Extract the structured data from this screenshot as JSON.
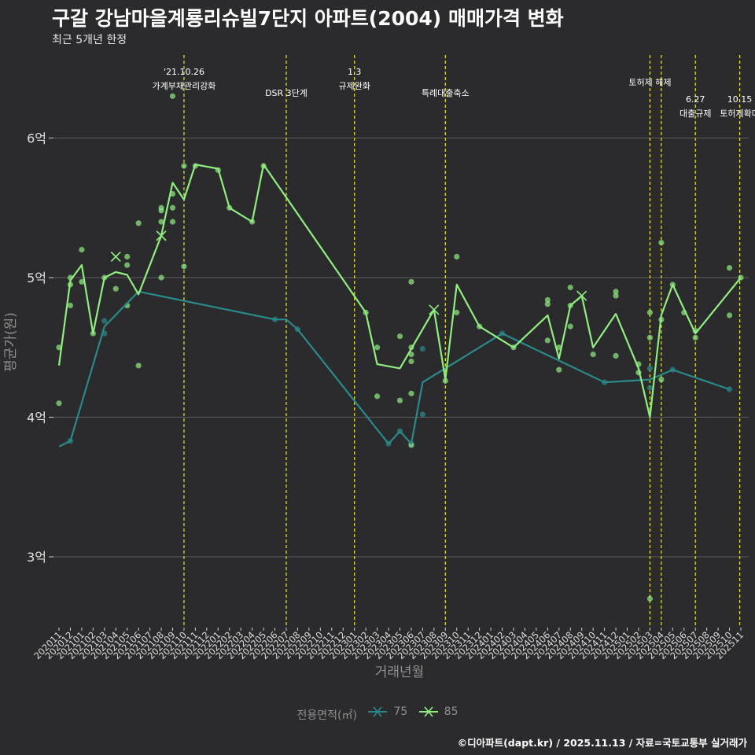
{
  "header": {
    "title": "구갈 강남마을계룡리슈빌7단지 아파트(2004) 매매가격 변화",
    "subtitle": "최근 5개년 한정"
  },
  "caption": "©디아파트(dapt.kr) / 2025.11.13 / 자료=국토교통부 실거래가",
  "legend": {
    "title": "전용면적(㎡)",
    "items": [
      {
        "label": "75",
        "color": "#2a8a8a"
      },
      {
        "label": "85",
        "color": "#90ee80"
      }
    ]
  },
  "colors": {
    "background": "#2b2b2d",
    "grid": "#5c5c5e",
    "event_line": "#e6e62e",
    "series_75": "#2a8a8a",
    "series_85": "#90ee80"
  },
  "chart_data": {
    "type": "line",
    "title": "구갈 강남마을계룡리슈빌7단지 아파트(2004) 매매가격 변화",
    "xlabel": "거래년월",
    "ylabel": "평균가(원)",
    "ylim": [
      2.5,
      6.5
    ],
    "y_ticks": [
      {
        "value": 3,
        "label": "3억"
      },
      {
        "value": 4,
        "label": "4억"
      },
      {
        "value": 5,
        "label": "5억"
      },
      {
        "value": 6,
        "label": "6억"
      }
    ],
    "categories": [
      "202011",
      "202012",
      "202101",
      "202102",
      "202103",
      "202104",
      "202105",
      "202106",
      "202107",
      "202108",
      "202109",
      "202110",
      "202111",
      "202112",
      "202201",
      "202202",
      "202203",
      "202204",
      "202205",
      "202206",
      "202207",
      "202208",
      "202209",
      "202210",
      "202211",
      "202212",
      "202301",
      "202302",
      "202303",
      "202304",
      "202305",
      "202306",
      "202307",
      "202308",
      "202309",
      "202310",
      "202311",
      "202312",
      "202401",
      "202402",
      "202403",
      "202404",
      "202405",
      "202406",
      "202407",
      "202408",
      "202409",
      "202410",
      "202411",
      "202412",
      "202501",
      "202502",
      "202503",
      "202504",
      "202505",
      "202506",
      "202507",
      "202508",
      "202509",
      "202510",
      "202511"
    ],
    "series": [
      {
        "name": "75",
        "color": "#2a8a8a",
        "line": [
          {
            "x": 0,
            "y": 3.79
          },
          {
            "x": 1,
            "y": 3.83
          },
          {
            "x": 4,
            "y": 4.65
          },
          {
            "x": 7,
            "y": 4.9
          },
          {
            "x": 19,
            "y": 4.7
          },
          {
            "x": 20,
            "y": 4.7
          },
          {
            "x": 21,
            "y": 4.63
          },
          {
            "x": 29,
            "y": 3.81
          },
          {
            "x": 30,
            "y": 3.9
          },
          {
            "x": 31,
            "y": 3.81
          },
          {
            "x": 32,
            "y": 4.25
          },
          {
            "x": 39,
            "y": 4.6
          },
          {
            "x": 48,
            "y": 4.25
          },
          {
            "x": 52,
            "y": 4.27
          },
          {
            "x": 54,
            "y": 4.34
          },
          {
            "x": 59,
            "y": 4.2
          }
        ],
        "points": [
          {
            "x": 1,
            "y": 3.83
          },
          {
            "x": 4,
            "y": 4.6
          },
          {
            "x": 4,
            "y": 4.69
          },
          {
            "x": 19,
            "y": 4.7
          },
          {
            "x": 21,
            "y": 4.63
          },
          {
            "x": 29,
            "y": 3.81
          },
          {
            "x": 30,
            "y": 3.9
          },
          {
            "x": 31,
            "y": 3.81
          },
          {
            "x": 32,
            "y": 4.02
          },
          {
            "x": 32,
            "y": 4.49
          },
          {
            "x": 39,
            "y": 4.6
          },
          {
            "x": 48,
            "y": 4.25
          },
          {
            "x": 52,
            "y": 4.21
          },
          {
            "x": 52,
            "y": 4.35
          },
          {
            "x": 54,
            "y": 4.34
          },
          {
            "x": 59,
            "y": 4.2
          }
        ]
      },
      {
        "name": "85",
        "color": "#90ee80",
        "line": [
          {
            "x": 0,
            "y": 4.37
          },
          {
            "x": 1,
            "y": 4.98
          },
          {
            "x": 2,
            "y": 5.09
          },
          {
            "x": 3,
            "y": 4.6
          },
          {
            "x": 4,
            "y": 5.0
          },
          {
            "x": 5,
            "y": 5.04
          },
          {
            "x": 6,
            "y": 5.02
          },
          {
            "x": 7,
            "y": 4.88
          },
          {
            "x": 9,
            "y": 5.3
          },
          {
            "x": 10,
            "y": 5.68
          },
          {
            "x": 11,
            "y": 5.56
          },
          {
            "x": 12,
            "y": 5.81
          },
          {
            "x": 14,
            "y": 5.78
          },
          {
            "x": 15,
            "y": 5.5
          },
          {
            "x": 17,
            "y": 5.4
          },
          {
            "x": 18,
            "y": 5.81
          },
          {
            "x": 27,
            "y": 4.75
          },
          {
            "x": 28,
            "y": 4.38
          },
          {
            "x": 30,
            "y": 4.35
          },
          {
            "x": 33,
            "y": 4.77
          },
          {
            "x": 34,
            "y": 4.27
          },
          {
            "x": 35,
            "y": 4.95
          },
          {
            "x": 37,
            "y": 4.65
          },
          {
            "x": 40,
            "y": 4.5
          },
          {
            "x": 43,
            "y": 4.73
          },
          {
            "x": 44,
            "y": 4.42
          },
          {
            "x": 45,
            "y": 4.8
          },
          {
            "x": 46,
            "y": 4.87
          },
          {
            "x": 47,
            "y": 4.5
          },
          {
            "x": 49,
            "y": 4.74
          },
          {
            "x": 51,
            "y": 4.35
          },
          {
            "x": 52,
            "y": 4.0
          },
          {
            "x": 53,
            "y": 4.73
          },
          {
            "x": 54,
            "y": 4.95
          },
          {
            "x": 56,
            "y": 4.6
          },
          {
            "x": 59,
            "y": 4.9
          },
          {
            "x": 60,
            "y": 5.0
          }
        ],
        "points": [
          {
            "x": 0,
            "y": 4.5
          },
          {
            "x": 0,
            "y": 4.1
          },
          {
            "x": 1,
            "y": 5.0
          },
          {
            "x": 1,
            "y": 4.8
          },
          {
            "x": 1,
            "y": 4.95
          },
          {
            "x": 2,
            "y": 5.2
          },
          {
            "x": 2,
            "y": 4.97
          },
          {
            "x": 3,
            "y": 4.6
          },
          {
            "x": 4,
            "y": 5.0
          },
          {
            "x": 5,
            "y": 4.92
          },
          {
            "x": 6,
            "y": 5.15
          },
          {
            "x": 6,
            "y": 5.09
          },
          {
            "x": 6,
            "y": 4.8
          },
          {
            "x": 7,
            "y": 5.39
          },
          {
            "x": 7,
            "y": 4.37
          },
          {
            "x": 9,
            "y": 5.5
          },
          {
            "x": 9,
            "y": 5.48
          },
          {
            "x": 9,
            "y": 5.4
          },
          {
            "x": 9,
            "y": 5.0
          },
          {
            "x": 10,
            "y": 6.3
          },
          {
            "x": 10,
            "y": 5.6
          },
          {
            "x": 10,
            "y": 5.5
          },
          {
            "x": 10,
            "y": 5.4
          },
          {
            "x": 11,
            "y": 5.8
          },
          {
            "x": 11,
            "y": 5.08
          },
          {
            "x": 12,
            "y": 5.8
          },
          {
            "x": 14,
            "y": 5.77
          },
          {
            "x": 15,
            "y": 5.5
          },
          {
            "x": 17,
            "y": 5.4
          },
          {
            "x": 18,
            "y": 5.8
          },
          {
            "x": 27,
            "y": 4.75
          },
          {
            "x": 28,
            "y": 4.5
          },
          {
            "x": 28,
            "y": 4.15
          },
          {
            "x": 30,
            "y": 4.58
          },
          {
            "x": 30,
            "y": 4.12
          },
          {
            "x": 31,
            "y": 4.97
          },
          {
            "x": 31,
            "y": 4.5
          },
          {
            "x": 31,
            "y": 4.45
          },
          {
            "x": 31,
            "y": 4.4
          },
          {
            "x": 31,
            "y": 4.17
          },
          {
            "x": 31,
            "y": 3.8
          },
          {
            "x": 34,
            "y": 4.26
          },
          {
            "x": 35,
            "y": 5.15
          },
          {
            "x": 35,
            "y": 4.75
          },
          {
            "x": 37,
            "y": 4.65
          },
          {
            "x": 40,
            "y": 4.5
          },
          {
            "x": 43,
            "y": 4.84
          },
          {
            "x": 43,
            "y": 4.81
          },
          {
            "x": 43,
            "y": 4.55
          },
          {
            "x": 44,
            "y": 4.5
          },
          {
            "x": 44,
            "y": 4.34
          },
          {
            "x": 45,
            "y": 4.93
          },
          {
            "x": 45,
            "y": 4.8
          },
          {
            "x": 45,
            "y": 4.65
          },
          {
            "x": 47,
            "y": 4.45
          },
          {
            "x": 49,
            "y": 4.9
          },
          {
            "x": 49,
            "y": 4.87
          },
          {
            "x": 49,
            "y": 4.44
          },
          {
            "x": 51,
            "y": 4.38
          },
          {
            "x": 51,
            "y": 4.32
          },
          {
            "x": 52,
            "y": 4.75
          },
          {
            "x": 52,
            "y": 4.57
          },
          {
            "x": 52,
            "y": 2.7
          },
          {
            "x": 53,
            "y": 5.25
          },
          {
            "x": 53,
            "y": 4.7
          },
          {
            "x": 53,
            "y": 4.27
          },
          {
            "x": 54,
            "y": 4.95
          },
          {
            "x": 55,
            "y": 4.75
          },
          {
            "x": 56,
            "y": 4.62
          },
          {
            "x": 56,
            "y": 4.57
          },
          {
            "x": 59,
            "y": 5.07
          },
          {
            "x": 59,
            "y": 4.73
          },
          {
            "x": 60,
            "y": 5.0
          }
        ],
        "cross_markers": [
          {
            "x": 5,
            "y": 5.15
          },
          {
            "x": 9,
            "y": 5.3
          },
          {
            "x": 33,
            "y": 4.77
          },
          {
            "x": 46,
            "y": 4.87
          }
        ]
      }
    ],
    "events": [
      {
        "x": 11,
        "lines": [
          "'21.10.26",
          "가계부채관리강화"
        ],
        "level": 0
      },
      {
        "x": 20,
        "lines": [
          "DSR 3단계"
        ],
        "level": 1
      },
      {
        "x": 26,
        "lines": [
          "1.3",
          "규제완화"
        ],
        "level": 0
      },
      {
        "x": 34,
        "lines": [
          "특례대출축소"
        ],
        "level": 1
      },
      {
        "x": 52,
        "lines": [
          "토허제 해제"
        ],
        "level": 0.5
      },
      {
        "x": 53,
        "lines": [],
        "level": 0
      },
      {
        "x": 56,
        "lines": [
          "6.27",
          "대출규제"
        ],
        "level": 1.3
      },
      {
        "x": 59.9,
        "lines": [
          "10.15",
          "토허제확대"
        ],
        "level": 1.3
      }
    ]
  }
}
